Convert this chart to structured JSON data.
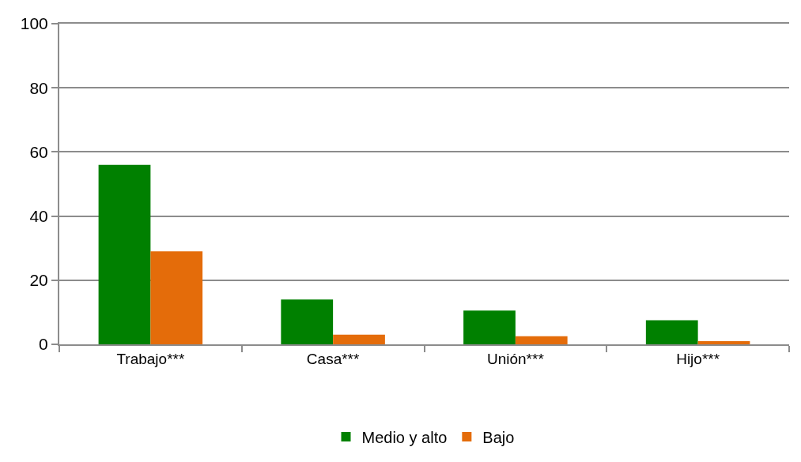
{
  "chart_data": {
    "type": "bar",
    "categories": [
      "Trabajo***",
      "Casa***",
      "Unión***",
      "Hijo***"
    ],
    "series": [
      {
        "name": "Medio y alto",
        "color": "#008000",
        "values": [
          56,
          14,
          10.5,
          7.5
        ]
      },
      {
        "name": "Bajo",
        "color": "#e46c0a",
        "values": [
          29,
          3,
          2.5,
          1
        ]
      }
    ],
    "ylim": [
      0,
      100
    ],
    "yticks": [
      0,
      20,
      40,
      60,
      80,
      100
    ],
    "grid": "y",
    "legend": "bottom"
  }
}
